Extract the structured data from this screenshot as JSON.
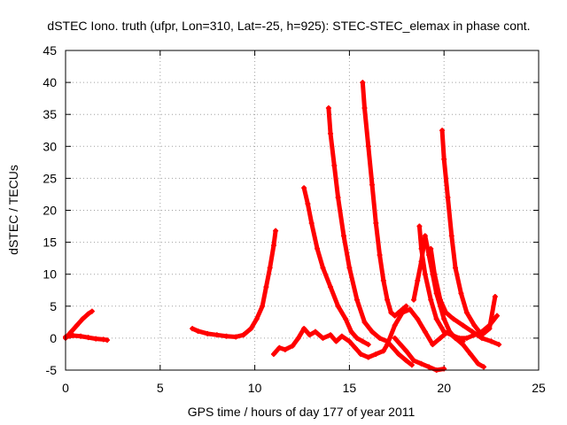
{
  "chart_data": {
    "type": "scatter",
    "title": "dSTEC Iono. truth (ufpr, Lon=310, Lat=-25, h=925): STEC-STEC_elemax in phase cont.",
    "xlabel": "GPS time / hours of day 177 of year 2011",
    "ylabel": "dSTEC  / TECUs",
    "xlim": [
      0,
      25
    ],
    "ylim": [
      -5,
      45
    ],
    "x_ticks": [
      "0",
      "5",
      "10",
      "15",
      "20",
      "25"
    ],
    "y_ticks": [
      "-5",
      "0",
      "5",
      "10",
      "15",
      "20",
      "25",
      "30",
      "35",
      "40",
      "45"
    ],
    "grid": true,
    "marker": "+",
    "color": "#ff0000",
    "series": [
      {
        "x": [
          0.0,
          0.3,
          0.6,
          0.9,
          1.2,
          1.4
        ],
        "y": [
          0.0,
          1.0,
          2.0,
          3.0,
          3.8,
          4.2
        ]
      },
      {
        "x": [
          0.0,
          0.4,
          0.8,
          1.2,
          1.6,
          2.0,
          2.2
        ],
        "y": [
          0.2,
          0.4,
          0.3,
          0.1,
          -0.1,
          -0.2,
          -0.3
        ]
      },
      {
        "x": [
          6.7,
          7.0,
          7.5,
          8.0,
          8.5,
          9.0,
          9.4,
          9.8,
          10.1,
          10.4,
          10.6,
          10.8,
          11.0,
          11.1
        ],
        "y": [
          1.5,
          1.1,
          0.7,
          0.5,
          0.3,
          0.2,
          0.5,
          1.5,
          3.0,
          5.0,
          8.0,
          11.0,
          14.5,
          16.8
        ]
      },
      {
        "x": [
          11.0,
          11.3,
          11.6,
          12.0,
          12.3,
          12.6,
          12.9,
          13.2,
          13.6,
          14.0,
          14.3,
          14.6,
          15.0,
          15.3,
          15.6,
          16.0,
          16.4,
          16.8,
          17.0
        ],
        "y": [
          -2.5,
          -1.5,
          -1.8,
          -1.2,
          0.0,
          1.5,
          0.5,
          1.0,
          0.0,
          0.5,
          -0.5,
          0.3,
          -0.5,
          -1.5,
          -2.5,
          -3.0,
          -2.5,
          -2.0,
          -1.0
        ]
      },
      {
        "x": [
          12.6,
          12.8,
          13.0,
          13.3,
          13.6,
          14.0,
          14.4,
          14.8,
          15.1,
          15.4,
          15.7,
          16.0
        ],
        "y": [
          23.5,
          21.0,
          18.0,
          14.0,
          11.0,
          8.0,
          5.0,
          3.0,
          1.0,
          0.0,
          -0.5,
          -1.0
        ]
      },
      {
        "x": [
          13.9,
          14.0,
          14.2,
          14.4,
          14.7,
          15.0,
          15.4,
          15.8,
          16.2,
          16.6,
          17.0,
          17.3,
          17.6,
          18.0,
          18.3
        ],
        "y": [
          36.0,
          32.0,
          27.0,
          22.0,
          16.0,
          11.0,
          6.0,
          2.5,
          1.0,
          0.0,
          -0.5,
          -1.5,
          -2.5,
          -3.5,
          -4.2
        ]
      },
      {
        "x": [
          15.7,
          15.8,
          16.0,
          16.2,
          16.4,
          16.6,
          16.8,
          17.0,
          17.2,
          17.4,
          17.6,
          17.8,
          18.0
        ],
        "y": [
          40.0,
          36.0,
          30.0,
          24.0,
          18.0,
          13.0,
          9.0,
          6.0,
          4.0,
          3.5,
          4.0,
          4.5,
          5.0
        ]
      },
      {
        "x": [
          17.4,
          17.7,
          18.0,
          18.4,
          18.8,
          19.2,
          19.6,
          20.0
        ],
        "y": [
          0.0,
          -1.0,
          -2.0,
          -3.5,
          -4.0,
          -4.5,
          -5.0,
          -4.8
        ]
      },
      {
        "x": [
          18.4,
          18.6,
          18.8,
          19.0,
          19.2,
          19.4,
          19.6,
          19.8,
          20.0,
          20.3,
          20.6,
          21.0,
          21.4,
          21.8,
          22.1
        ],
        "y": [
          6.0,
          9.0,
          12.0,
          16.0,
          13.0,
          10.0,
          7.0,
          5.0,
          3.0,
          1.0,
          0.0,
          -1.0,
          -2.5,
          -4.0,
          -4.5
        ]
      },
      {
        "x": [
          18.7,
          18.8,
          19.0,
          19.3,
          19.6,
          20.0,
          20.4,
          20.8,
          21.2,
          21.6,
          22.0,
          22.4,
          22.8
        ],
        "y": [
          17.5,
          14.0,
          10.0,
          6.0,
          3.0,
          1.0,
          0.5,
          0.0,
          0.0,
          0.5,
          1.0,
          2.0,
          3.5
        ]
      },
      {
        "x": [
          19.9,
          20.0,
          20.2,
          20.4,
          20.6,
          20.9,
          21.2,
          21.6,
          22.0,
          22.4,
          22.7
        ],
        "y": [
          32.5,
          28.0,
          22.0,
          16.0,
          11.0,
          7.0,
          4.0,
          2.0,
          0.5,
          1.5,
          6.5
        ]
      },
      {
        "x": [
          19.3,
          19.5,
          19.8,
          20.1,
          20.5,
          21.0,
          21.5,
          22.0,
          22.5,
          22.9
        ],
        "y": [
          14.0,
          10.0,
          6.0,
          4.0,
          3.0,
          2.0,
          1.0,
          0.0,
          -0.5,
          -1.0
        ]
      },
      {
        "x": [
          17.0,
          17.4,
          17.8,
          18.2,
          18.6,
          19.0,
          19.4,
          19.8,
          20.2,
          20.6,
          21.0
        ],
        "y": [
          -1.0,
          2.0,
          4.0,
          4.5,
          3.0,
          1.0,
          -1.0,
          0.0,
          1.0,
          0.0,
          -0.5
        ]
      }
    ]
  }
}
